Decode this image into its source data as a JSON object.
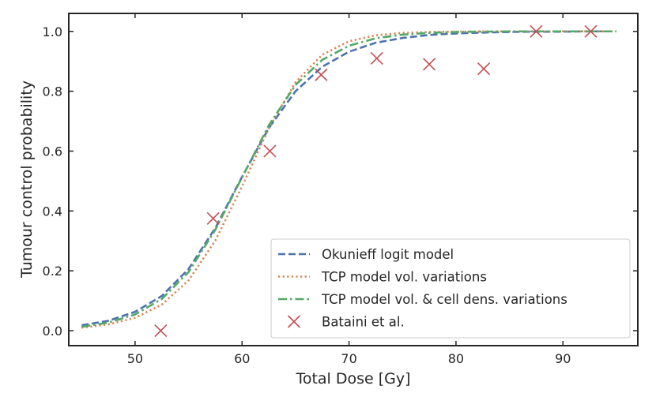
{
  "chart_data": {
    "type": "line",
    "title": "",
    "xlabel": "Total Dose [Gy]",
    "ylabel": "Tumour control probability",
    "xlim": [
      43.8,
      97
    ],
    "ylim": [
      -0.05,
      1.06
    ],
    "xticks": [
      50,
      60,
      70,
      80,
      90
    ],
    "yticks": [
      0.0,
      0.2,
      0.4,
      0.6,
      0.8,
      1.0
    ],
    "xtick_labels": [
      "50",
      "60",
      "70",
      "80",
      "90"
    ],
    "ytick_labels": [
      "0.0",
      "0.2",
      "0.4",
      "0.6",
      "0.8",
      "1.0"
    ],
    "grid": false,
    "legend_position": "bottom-right",
    "series": [
      {
        "name": "Okunieff logit model",
        "kind": "line",
        "style": "dashed",
        "color": "#4c72b0",
        "x": [
          45,
          47.5,
          50,
          52.5,
          55,
          57.5,
          60,
          62.5,
          65,
          67.5,
          70,
          72.5,
          75,
          77.5,
          80,
          82.5,
          85,
          87.5,
          90,
          92.5,
          95
        ],
        "y": [
          0.018,
          0.033,
          0.063,
          0.116,
          0.206,
          0.343,
          0.514,
          0.677,
          0.8,
          0.882,
          0.932,
          0.962,
          0.978,
          0.988,
          0.993,
          0.996,
          0.998,
          0.999,
          0.999,
          1.0,
          1.0
        ]
      },
      {
        "name": "TCP model vol. variations",
        "kind": "line",
        "style": "dotted",
        "color": "#dd8452",
        "x": [
          45,
          47.5,
          50,
          52.5,
          55,
          57.5,
          60,
          62.5,
          65,
          67.5,
          70,
          72.5,
          75,
          77.5,
          80,
          82.5,
          85,
          87.5,
          90,
          92.5,
          95
        ],
        "y": [
          0.01,
          0.021,
          0.043,
          0.087,
          0.168,
          0.301,
          0.482,
          0.676,
          0.83,
          0.922,
          0.967,
          0.987,
          0.995,
          0.998,
          0.999,
          1.0,
          1.0,
          1.0,
          1.0,
          1.0,
          1.0
        ]
      },
      {
        "name": "TCP model vol. & cell dens. variations",
        "kind": "line",
        "style": "dashdot",
        "color": "#55a868",
        "x": [
          45,
          47.5,
          50,
          52.5,
          55,
          57.5,
          60,
          62.5,
          65,
          67.5,
          70,
          72.5,
          75,
          77.5,
          80,
          82.5,
          85,
          87.5,
          90,
          92.5,
          95
        ],
        "y": [
          0.013,
          0.027,
          0.054,
          0.106,
          0.196,
          0.337,
          0.512,
          0.686,
          0.821,
          0.905,
          0.952,
          0.977,
          0.989,
          0.995,
          0.998,
          0.999,
          1.0,
          1.0,
          1.0,
          1.0,
          1.0
        ]
      },
      {
        "name": "Bataini et al.",
        "kind": "scatter",
        "marker": "x",
        "color": "#c44e52",
        "x": [
          52.4,
          57.3,
          62.6,
          67.4,
          72.6,
          77.5,
          82.6,
          87.5,
          92.6
        ],
        "y": [
          0.0,
          0.375,
          0.6,
          0.855,
          0.91,
          0.89,
          0.875,
          1.0,
          1.0
        ]
      }
    ]
  }
}
